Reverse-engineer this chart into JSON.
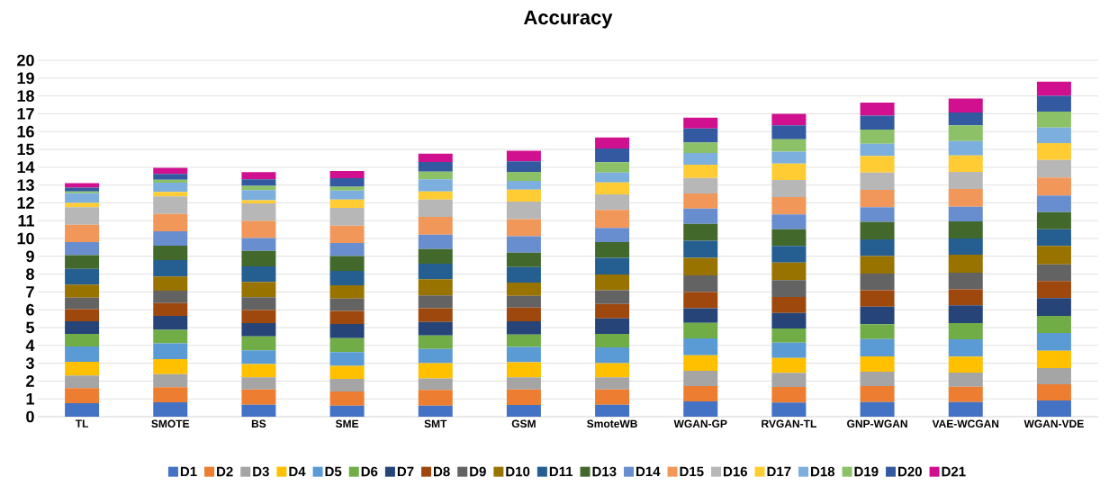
{
  "chart_data": {
    "type": "bar",
    "stacked": true,
    "title": "Accuracy",
    "categories": [
      "TL",
      "SMOTE",
      "BS",
      "SME",
      "SMT",
      "GSM",
      "SmoteWB",
      "WGAN-GP",
      "RVGAN-TL",
      "GNP-WGAN",
      "VAE-WCGAN",
      "WGAN-VDE"
    ],
    "ylim": [
      0,
      20
    ],
    "yticks": [
      0,
      1,
      2,
      3,
      4,
      5,
      6,
      7,
      8,
      9,
      10,
      11,
      12,
      13,
      14,
      15,
      16,
      17,
      18,
      19,
      20
    ],
    "grid": "y",
    "legend": "bottom",
    "series": [
      {
        "name": "D1",
        "color": "#4472c4",
        "values": [
          0.76,
          0.81,
          0.67,
          0.62,
          0.62,
          0.66,
          0.67,
          0.86,
          0.79,
          0.82,
          0.82,
          0.91
        ]
      },
      {
        "name": "D2",
        "color": "#ed7d31",
        "values": [
          0.84,
          0.84,
          0.86,
          0.79,
          0.88,
          0.87,
          0.86,
          0.86,
          0.88,
          0.9,
          0.86,
          0.91
        ]
      },
      {
        "name": "D3",
        "color": "#a5a5a5",
        "values": [
          0.71,
          0.74,
          0.68,
          0.71,
          0.65,
          0.68,
          0.68,
          0.86,
          0.79,
          0.81,
          0.79,
          0.91
        ]
      },
      {
        "name": "D4",
        "color": "#ffc000",
        "values": [
          0.77,
          0.84,
          0.74,
          0.73,
          0.86,
          0.85,
          0.8,
          0.87,
          0.84,
          0.85,
          0.9,
          0.97
        ]
      },
      {
        "name": "D5",
        "color": "#5b9bd5",
        "values": [
          0.86,
          0.88,
          0.77,
          0.77,
          0.79,
          0.86,
          0.88,
          0.94,
          0.86,
          0.98,
          0.97,
          1.0
        ]
      },
      {
        "name": "D6",
        "color": "#70ad47",
        "values": [
          0.71,
          0.77,
          0.79,
          0.79,
          0.76,
          0.69,
          0.76,
          0.88,
          0.79,
          0.83,
          0.91,
          0.96
        ]
      },
      {
        "name": "D7",
        "color": "#264478",
        "values": [
          0.7,
          0.78,
          0.74,
          0.79,
          0.76,
          0.74,
          0.87,
          0.81,
          0.87,
          0.99,
          1.0,
          0.99
        ]
      },
      {
        "name": "D8",
        "color": "#9e480e",
        "values": [
          0.69,
          0.72,
          0.74,
          0.74,
          0.77,
          0.78,
          0.81,
          0.92,
          0.9,
          0.91,
          0.9,
          0.96
        ]
      },
      {
        "name": "D9",
        "color": "#636363",
        "values": [
          0.64,
          0.69,
          0.71,
          0.69,
          0.71,
          0.65,
          0.77,
          0.93,
          0.94,
          0.94,
          0.93,
          0.94
        ]
      },
      {
        "name": "D10",
        "color": "#997300",
        "values": [
          0.73,
          0.79,
          0.86,
          0.74,
          0.91,
          0.75,
          0.88,
          0.98,
          0.99,
          0.99,
          1.01,
          1.03
        ]
      },
      {
        "name": "D11",
        "color": "#255e91",
        "values": [
          0.89,
          0.93,
          0.87,
          0.81,
          0.88,
          0.87,
          0.93,
          0.96,
          0.93,
          0.93,
          0.91,
          0.94
        ]
      },
      {
        "name": "D13",
        "color": "#43682b",
        "values": [
          0.76,
          0.81,
          0.88,
          0.83,
          0.82,
          0.81,
          0.89,
          0.95,
          0.94,
          0.98,
          0.96,
          0.96
        ]
      },
      {
        "name": "D14",
        "color": "#698ed0",
        "values": [
          0.74,
          0.8,
          0.71,
          0.74,
          0.81,
          0.91,
          0.79,
          0.86,
          0.83,
          0.82,
          0.82,
          0.93
        ]
      },
      {
        "name": "D15",
        "color": "#f1975a",
        "values": [
          0.97,
          0.98,
          0.97,
          0.97,
          0.99,
          0.97,
          1.01,
          0.85,
          0.97,
          0.98,
          1.0,
          1.01
        ]
      },
      {
        "name": "D16",
        "color": "#b7b7b7",
        "values": [
          0.98,
          0.98,
          0.98,
          1.0,
          0.98,
          0.98,
          0.87,
          0.87,
          0.96,
          0.97,
          0.96,
          0.99
        ]
      },
      {
        "name": "D17",
        "color": "#ffcd33",
        "values": [
          0.25,
          0.25,
          0.18,
          0.47,
          0.45,
          0.67,
          0.68,
          0.74,
          0.93,
          0.93,
          0.92,
          0.94
        ]
      },
      {
        "name": "D18",
        "color": "#7cafdd",
        "values": [
          0.54,
          0.52,
          0.56,
          0.5,
          0.68,
          0.49,
          0.55,
          0.66,
          0.67,
          0.69,
          0.81,
          0.88
        ]
      },
      {
        "name": "D19",
        "color": "#8cc168",
        "values": [
          0.1,
          0.17,
          0.24,
          0.22,
          0.43,
          0.51,
          0.58,
          0.59,
          0.69,
          0.79,
          0.88,
          0.89
        ]
      },
      {
        "name": "D20",
        "color": "#335aa1",
        "values": [
          0.21,
          0.32,
          0.37,
          0.47,
          0.54,
          0.59,
          0.77,
          0.79,
          0.78,
          0.79,
          0.72,
          0.88
        ]
      },
      {
        "name": "D21",
        "color": "#d0108f",
        "values": [
          0.26,
          0.34,
          0.4,
          0.41,
          0.47,
          0.59,
          0.62,
          0.6,
          0.64,
          0.73,
          0.78,
          0.8
        ]
      }
    ]
  }
}
